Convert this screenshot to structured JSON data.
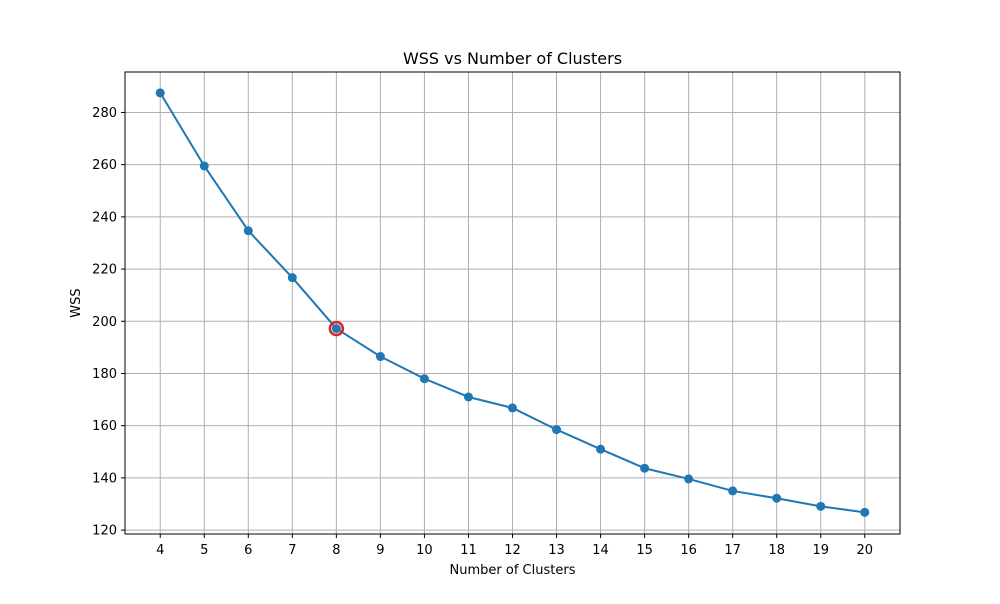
{
  "chart_data": {
    "type": "line",
    "title": "WSS vs Number of Clusters",
    "xlabel": "Number of Clusters",
    "ylabel": "WSS",
    "x": [
      4,
      5,
      6,
      7,
      8,
      9,
      10,
      11,
      12,
      13,
      14,
      15,
      16,
      17,
      18,
      19,
      20
    ],
    "series": [
      {
        "values": [
          287.5,
          259.5,
          234.7,
          216.7,
          197.2,
          186.5,
          178.0,
          171.0,
          166.8,
          158.5,
          151.0,
          143.7,
          139.6,
          135.0,
          132.2,
          129.1,
          126.8
        ],
        "color": "#1f77b4",
        "marker": "circle"
      }
    ],
    "highlight": {
      "x": 8,
      "y": 197.2,
      "color": "#d62728"
    },
    "xticks": [
      4,
      5,
      6,
      7,
      8,
      9,
      10,
      11,
      12,
      13,
      14,
      15,
      16,
      17,
      18,
      19,
      20
    ],
    "yticks": [
      120,
      140,
      160,
      180,
      200,
      220,
      240,
      260,
      280
    ],
    "xlim": [
      3.2,
      20.8
    ],
    "ylim": [
      118.5,
      295.5
    ],
    "grid": true,
    "legend": false
  }
}
